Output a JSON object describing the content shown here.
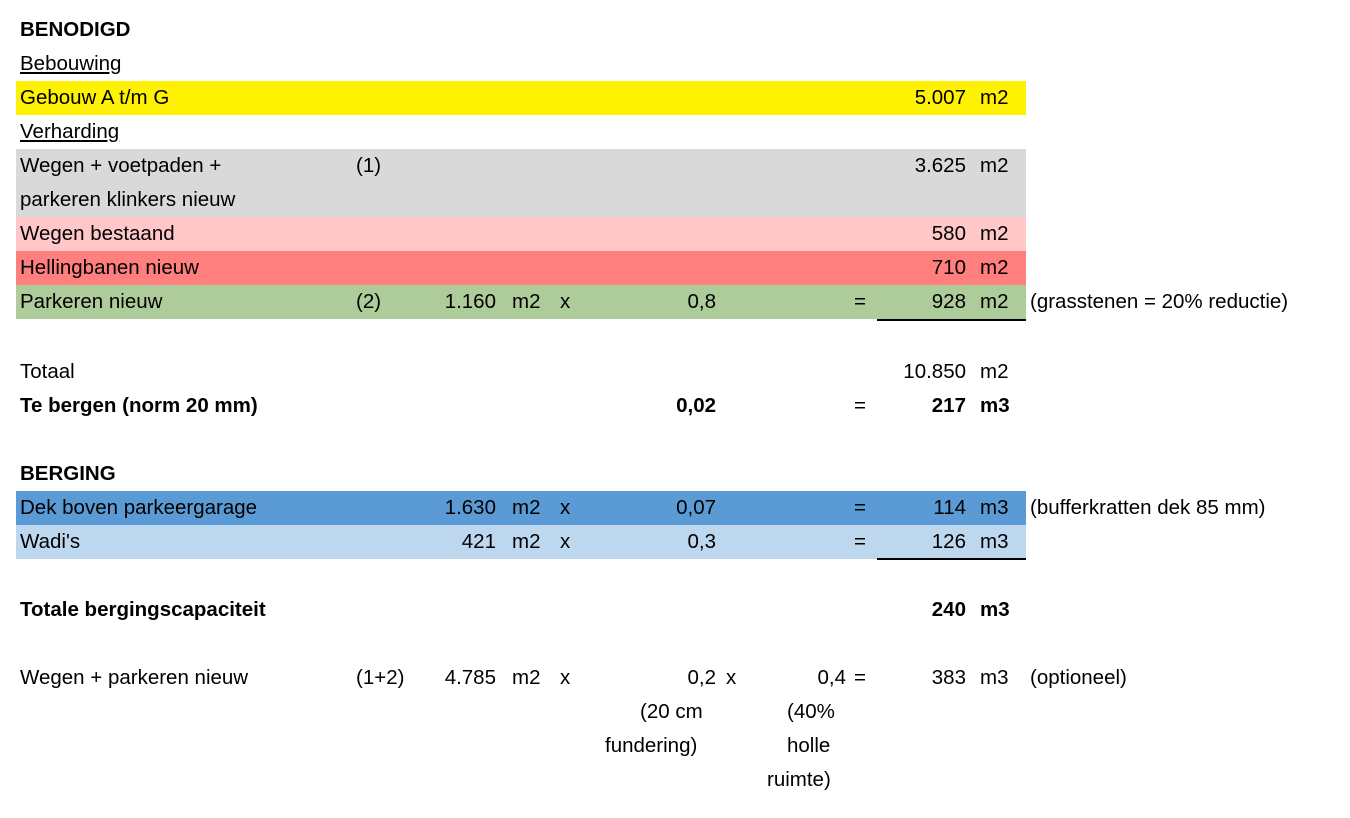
{
  "colors": {
    "yellow": "#fff200",
    "gray": "#d9d9d9",
    "light_pink": "#ffc7c7",
    "salmon": "#ff7f7f",
    "green": "#aecb9a",
    "blue": "#5b9bd5",
    "light_blue": "#bdd7ee"
  },
  "benodigd": {
    "heading": "BENODIGD",
    "bebouwing_label": "Bebouwing",
    "gebouw": {
      "label": "Gebouw A t/m G",
      "value": "5.007",
      "unit": "m2"
    },
    "verharding_label": "Verharding",
    "wegen_voetpaden": {
      "label_line1": "Wegen + voetpaden +",
      "label_line2": "parkeren klinkers nieuw",
      "ref": "(1)",
      "value": "3.625",
      "unit": "m2"
    },
    "wegen_bestaand": {
      "label": "Wegen bestaand",
      "value": "580",
      "unit": "m2"
    },
    "hellingbanen": {
      "label": "Hellingbanen nieuw",
      "value": "710",
      "unit": "m2"
    },
    "parkeren_nieuw": {
      "label": "Parkeren nieuw",
      "ref": "(2)",
      "area": "1.160",
      "area_unit": "m2",
      "times": "x",
      "factor": "0,8",
      "equals": "=",
      "value": "928",
      "unit": "m2",
      "note": "(grasstenen = 20% reductie)"
    }
  },
  "totaal": {
    "label": "Totaal",
    "value": "10.850",
    "unit": "m2"
  },
  "te_bergen": {
    "label": "Te bergen (norm 20 mm)",
    "factor": "0,02",
    "equals": "=",
    "value": "217",
    "unit": "m3"
  },
  "berging": {
    "heading": "BERGING",
    "dek": {
      "label": "Dek boven parkeergarage",
      "area": "1.630",
      "area_unit": "m2",
      "times": "x",
      "factor": "0,07",
      "equals": "=",
      "value": "114",
      "unit": "m3",
      "note": "(bufferkratten dek 85 mm)"
    },
    "wadis": {
      "label": "Wadi's",
      "area": "421",
      "area_unit": "m2",
      "times": "x",
      "factor": "0,3",
      "equals": "=",
      "value": "126",
      "unit": "m3"
    }
  },
  "totale": {
    "label": "Totale bergingscapaciteit",
    "value": "240",
    "unit": "m3"
  },
  "optioneel": {
    "label": "Wegen + parkeren nieuw",
    "ref": "(1+2)",
    "area": "4.785",
    "area_unit": "m2",
    "times1": "x",
    "factor1": "0,2",
    "times2": "x",
    "factor2": "0,4",
    "equals": "=",
    "value": "383",
    "unit": "m3",
    "note": "(optioneel)",
    "note1_lines": [
      "(20 cm",
      "fundering)"
    ],
    "note2_lines": [
      "(40%",
      "holle",
      "ruimte)"
    ]
  }
}
